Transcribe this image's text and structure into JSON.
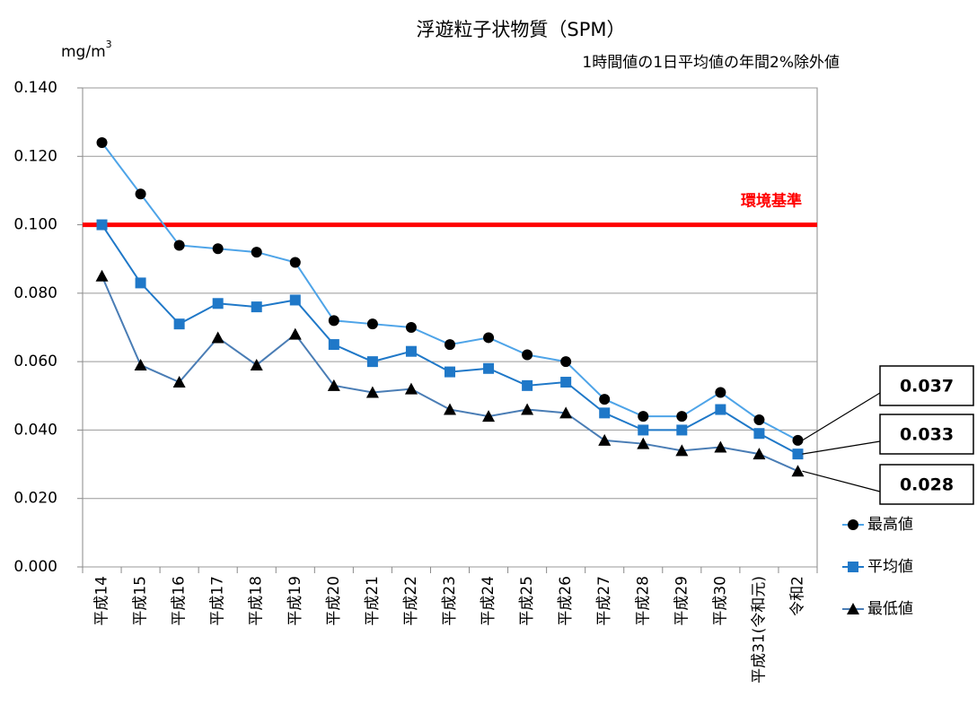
{
  "chart_data": {
    "type": "line",
    "title": "浮遊粒子状物質（SPM）",
    "subtitle": "1時間値の1日平均値の年間2%除外値",
    "unit": "mg/m",
    "unit_sup": "3",
    "categories": [
      "平成14",
      "平成15",
      "平成16",
      "平成17",
      "平成18",
      "平成19",
      "平成20",
      "平成21",
      "平成22",
      "平成23",
      "平成24",
      "平成25",
      "平成26",
      "平成27",
      "平成28",
      "平成29",
      "平成30",
      "平成31(令和元)",
      "令和2"
    ],
    "series": [
      {
        "name": "最高値",
        "color": "#4ea4e8",
        "marker": "circle",
        "marker_color": "#000000",
        "values": [
          0.124,
          0.109,
          0.094,
          0.093,
          0.092,
          0.089,
          0.072,
          0.071,
          0.07,
          0.065,
          0.067,
          0.062,
          0.06,
          0.049,
          0.044,
          0.044,
          0.051,
          0.043,
          0.037
        ]
      },
      {
        "name": "平均値",
        "color": "#1f78c8",
        "marker": "square",
        "marker_color": "#1f78c8",
        "values": [
          0.1,
          0.083,
          0.071,
          0.077,
          0.076,
          0.078,
          0.065,
          0.06,
          0.063,
          0.057,
          0.058,
          0.053,
          0.054,
          0.045,
          0.04,
          0.04,
          0.046,
          0.039,
          0.033
        ]
      },
      {
        "name": "最低値",
        "color": "#4a7db5",
        "marker": "triangle",
        "marker_color": "#000000",
        "values": [
          0.085,
          0.059,
          0.054,
          0.067,
          0.059,
          0.068,
          0.053,
          0.051,
          0.052,
          0.046,
          0.044,
          0.046,
          0.045,
          0.037,
          0.036,
          0.034,
          0.035,
          0.033,
          0.028
        ]
      }
    ],
    "callouts": [
      "0.037",
      "0.033",
      "0.028"
    ],
    "reference_line": {
      "value": 0.1,
      "label": "環境基準",
      "color": "#ff0000"
    },
    "ylim": [
      0,
      0.14
    ],
    "yticks": [
      {
        "value": 0,
        "label": "0.000"
      },
      {
        "value": 0.02,
        "label": "0.020"
      },
      {
        "value": 0.04,
        "label": "0.040"
      },
      {
        "value": 0.06,
        "label": "0.060"
      },
      {
        "value": 0.08,
        "label": "0.080"
      },
      {
        "value": 0.1,
        "label": "0.100"
      },
      {
        "value": 0.12,
        "label": "0.120"
      },
      {
        "value": 0.14,
        "label": "0.140"
      }
    ],
    "grid": true
  }
}
